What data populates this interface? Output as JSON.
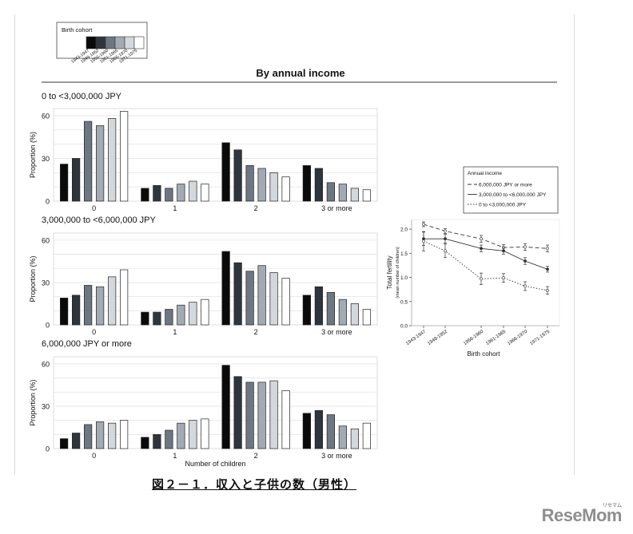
{
  "title": "By annual income",
  "caption": "図２－１．収入と子供の数（男性）",
  "logo": "ReseMom",
  "logo_small": "リセマム",
  "legend_cohort": {
    "title": "Birth cohort",
    "labels": [
      "1943-1947",
      "1948-1952",
      "1956-1960",
      "1961-1965",
      "1966-1970",
      "1971-1975"
    ],
    "colors": [
      "#0a0a0a",
      "#2f353c",
      "#6d7781",
      "#a2abb3",
      "#d3d8dd",
      "#ffffff"
    ]
  },
  "colors": {
    "bar_stroke": "#222222",
    "grid": "#e3e3e3",
    "axis": "#555555"
  },
  "chart_data": [
    {
      "type": "bar",
      "title": "0 to <3,000,000 JPY",
      "categories": [
        "0",
        "1",
        "2",
        "3 or more"
      ],
      "ylabel": "Proportion (%)",
      "xlabel": "",
      "ylim": [
        0,
        65
      ],
      "yticks": [
        0,
        30,
        60
      ],
      "series": [
        {
          "name": "1943-1947",
          "values": [
            26,
            9,
            41,
            25
          ]
        },
        {
          "name": "1948-1952",
          "values": [
            30,
            11,
            36,
            23
          ]
        },
        {
          "name": "1956-1960",
          "values": [
            56,
            9,
            25,
            13
          ]
        },
        {
          "name": "1961-1965",
          "values": [
            53,
            12,
            23,
            12
          ]
        },
        {
          "name": "1966-1970",
          "values": [
            58,
            14,
            20,
            9
          ]
        },
        {
          "name": "1971-1975",
          "values": [
            63,
            12,
            17,
            8
          ]
        }
      ]
    },
    {
      "type": "bar",
      "title": "3,000,000 to <6,000,000 JPY",
      "categories": [
        "0",
        "1",
        "2",
        "3 or more"
      ],
      "ylabel": "Proportion (%)",
      "xlabel": "",
      "ylim": [
        0,
        65
      ],
      "yticks": [
        0,
        30,
        60
      ],
      "series": [
        {
          "name": "1943-1947",
          "values": [
            19,
            9,
            52,
            21
          ]
        },
        {
          "name": "1948-1952",
          "values": [
            21,
            9,
            44,
            27
          ]
        },
        {
          "name": "1956-1960",
          "values": [
            28,
            11,
            38,
            23
          ]
        },
        {
          "name": "1961-1965",
          "values": [
            27,
            14,
            42,
            18
          ]
        },
        {
          "name": "1966-1970",
          "values": [
            34,
            16,
            37,
            15
          ]
        },
        {
          "name": "1971-1975",
          "values": [
            39,
            18,
            33,
            11
          ]
        }
      ]
    },
    {
      "type": "bar",
      "title": "6,000,000 JPY or more",
      "categories": [
        "0",
        "1",
        "2",
        "3 or more"
      ],
      "ylabel": "Proportion (%)",
      "xlabel": "Number of children",
      "ylim": [
        0,
        65
      ],
      "yticks": [
        0,
        30,
        60
      ],
      "series": [
        {
          "name": "1943-1947",
          "values": [
            7,
            8,
            59,
            25
          ]
        },
        {
          "name": "1948-1952",
          "values": [
            11,
            10,
            51,
            27
          ]
        },
        {
          "name": "1956-1960",
          "values": [
            17,
            13,
            47,
            24
          ]
        },
        {
          "name": "1961-1965",
          "values": [
            19,
            18,
            47,
            16
          ]
        },
        {
          "name": "1966-1970",
          "values": [
            18,
            20,
            48,
            14
          ]
        },
        {
          "name": "1971-1975",
          "values": [
            20,
            21,
            41,
            18
          ]
        }
      ]
    },
    {
      "type": "line",
      "title": "",
      "legend_title": "Annual income",
      "legend": "top-right",
      "categories": [
        "1943-1947",
        "1948-1952",
        "1956-1960",
        "1961-1965",
        "1966-1970",
        "1971-1975"
      ],
      "xlabel": "Birth cohort",
      "ylabel": "Total fertility",
      "ylabel2": "(mean number of children)",
      "ylim": [
        0.0,
        2.2
      ],
      "yticks": [
        0.0,
        0.5,
        1.0,
        1.5,
        2.0
      ],
      "ytick_labels": [
        "0.0",
        "0.5",
        "1.0",
        "1.5",
        "2.0"
      ],
      "series": [
        {
          "name": "6,000,000 JPY or more",
          "style": "dashed",
          "values": [
            2.1,
            1.96,
            1.8,
            1.62,
            1.63,
            1.6
          ],
          "err": [
            0.05,
            0.05,
            0.07,
            0.06,
            0.07,
            0.07
          ]
        },
        {
          "name": "3,000,000 to <6,000,000 JPY",
          "style": "solid",
          "values": [
            1.8,
            1.8,
            1.6,
            1.55,
            1.34,
            1.17
          ],
          "err": [
            0.14,
            0.09,
            0.07,
            0.07,
            0.07,
            0.06
          ]
        },
        {
          "name": "0 to <3,000,000 JPY",
          "style": "dotted",
          "values": [
            1.75,
            1.55,
            0.97,
            0.99,
            0.82,
            0.73
          ],
          "err": [
            0.2,
            0.14,
            0.12,
            0.09,
            0.09,
            0.08
          ]
        }
      ]
    }
  ]
}
